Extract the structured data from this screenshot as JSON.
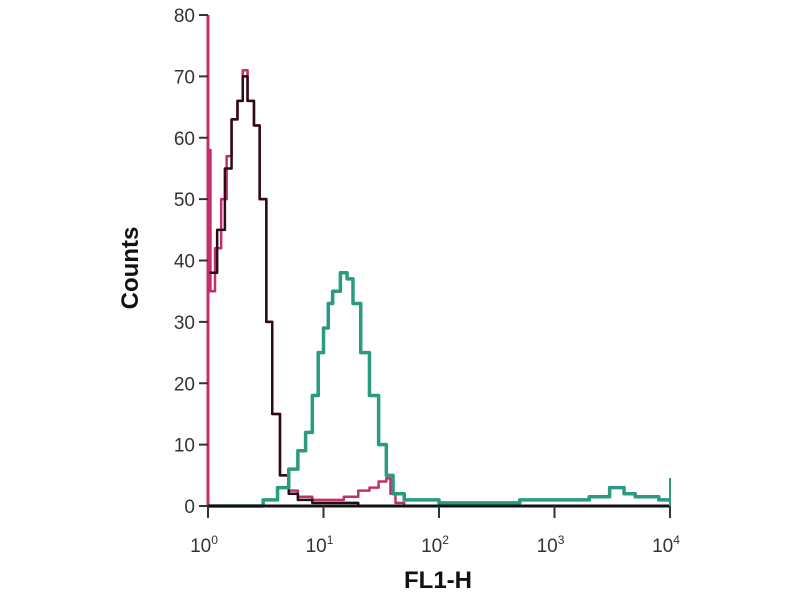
{
  "chart_data": {
    "type": "line",
    "title": "",
    "xlabel": "FL1-H",
    "ylabel": "Counts",
    "xscale": "log",
    "xlim": [
      1,
      10000
    ],
    "ylim": [
      0,
      80
    ],
    "grid": false,
    "x_ticks": [
      1,
      10,
      100,
      1000,
      10000
    ],
    "x_tick_labels": [
      {
        "base": "10",
        "exp": "0"
      },
      {
        "base": "10",
        "exp": "1"
      },
      {
        "base": "10",
        "exp": "2"
      },
      {
        "base": "10",
        "exp": "3"
      },
      {
        "base": "10",
        "exp": "4"
      }
    ],
    "y_ticks": [
      0,
      10,
      20,
      30,
      40,
      50,
      60,
      70,
      80
    ],
    "y_tick_labels": [
      "0",
      "10",
      "20",
      "30",
      "40",
      "50",
      "60",
      "70",
      "80"
    ],
    "series": [
      {
        "color": "#c2306c",
        "points": [
          [
            1,
            0
          ],
          [
            1,
            58
          ],
          [
            1.05,
            35
          ],
          [
            1.15,
            42
          ],
          [
            1.3,
            50
          ],
          [
            1.45,
            57
          ],
          [
            1.6,
            63
          ],
          [
            1.8,
            66
          ],
          [
            2.0,
            71
          ],
          [
            2.2,
            66
          ],
          [
            2.5,
            62
          ],
          [
            2.8,
            50
          ],
          [
            3.2,
            30
          ],
          [
            3.6,
            15
          ],
          [
            4.2,
            5
          ],
          [
            5,
            2.5
          ],
          [
            6,
            1.5
          ],
          [
            8,
            1
          ],
          [
            12,
            1
          ],
          [
            15,
            1.5
          ],
          [
            20,
            2.5
          ],
          [
            25,
            3
          ],
          [
            30,
            4
          ],
          [
            35,
            4.5
          ],
          [
            38,
            2
          ],
          [
            42,
            0.5
          ],
          [
            50,
            0
          ],
          [
            10000,
            0
          ]
        ]
      },
      {
        "color": "#2a0c14",
        "points": [
          [
            1,
            38
          ],
          [
            1.2,
            45
          ],
          [
            1.4,
            55
          ],
          [
            1.6,
            63
          ],
          [
            1.8,
            66
          ],
          [
            2.0,
            70
          ],
          [
            2.2,
            66
          ],
          [
            2.5,
            62
          ],
          [
            2.8,
            50
          ],
          [
            3.2,
            30
          ],
          [
            3.6,
            15
          ],
          [
            4.2,
            5
          ],
          [
            5,
            2
          ],
          [
            6,
            1
          ],
          [
            8,
            0.5
          ],
          [
            10,
            0.5
          ],
          [
            20,
            0
          ],
          [
            10000,
            0
          ]
        ]
      },
      {
        "color": "#2a9a80",
        "points": [
          [
            1,
            0
          ],
          [
            2.5,
            0
          ],
          [
            3,
            1
          ],
          [
            4,
            3
          ],
          [
            5,
            6
          ],
          [
            6,
            9
          ],
          [
            7,
            12
          ],
          [
            8,
            18
          ],
          [
            9,
            25
          ],
          [
            10,
            29
          ],
          [
            11,
            33
          ],
          [
            12,
            35
          ],
          [
            14,
            38
          ],
          [
            16,
            37
          ],
          [
            18,
            33
          ],
          [
            21,
            25
          ],
          [
            25,
            18
          ],
          [
            30,
            10
          ],
          [
            35,
            5
          ],
          [
            40,
            2
          ],
          [
            50,
            1
          ],
          [
            70,
            1
          ],
          [
            100,
            0.5
          ],
          [
            200,
            0.5
          ],
          [
            500,
            1
          ],
          [
            1000,
            1
          ],
          [
            2000,
            1.5
          ],
          [
            3000,
            3
          ],
          [
            4000,
            2
          ],
          [
            5000,
            1.5
          ],
          [
            8000,
            1
          ],
          [
            10000,
            1
          ]
        ]
      }
    ],
    "axis_color": "#3a0a14"
  }
}
